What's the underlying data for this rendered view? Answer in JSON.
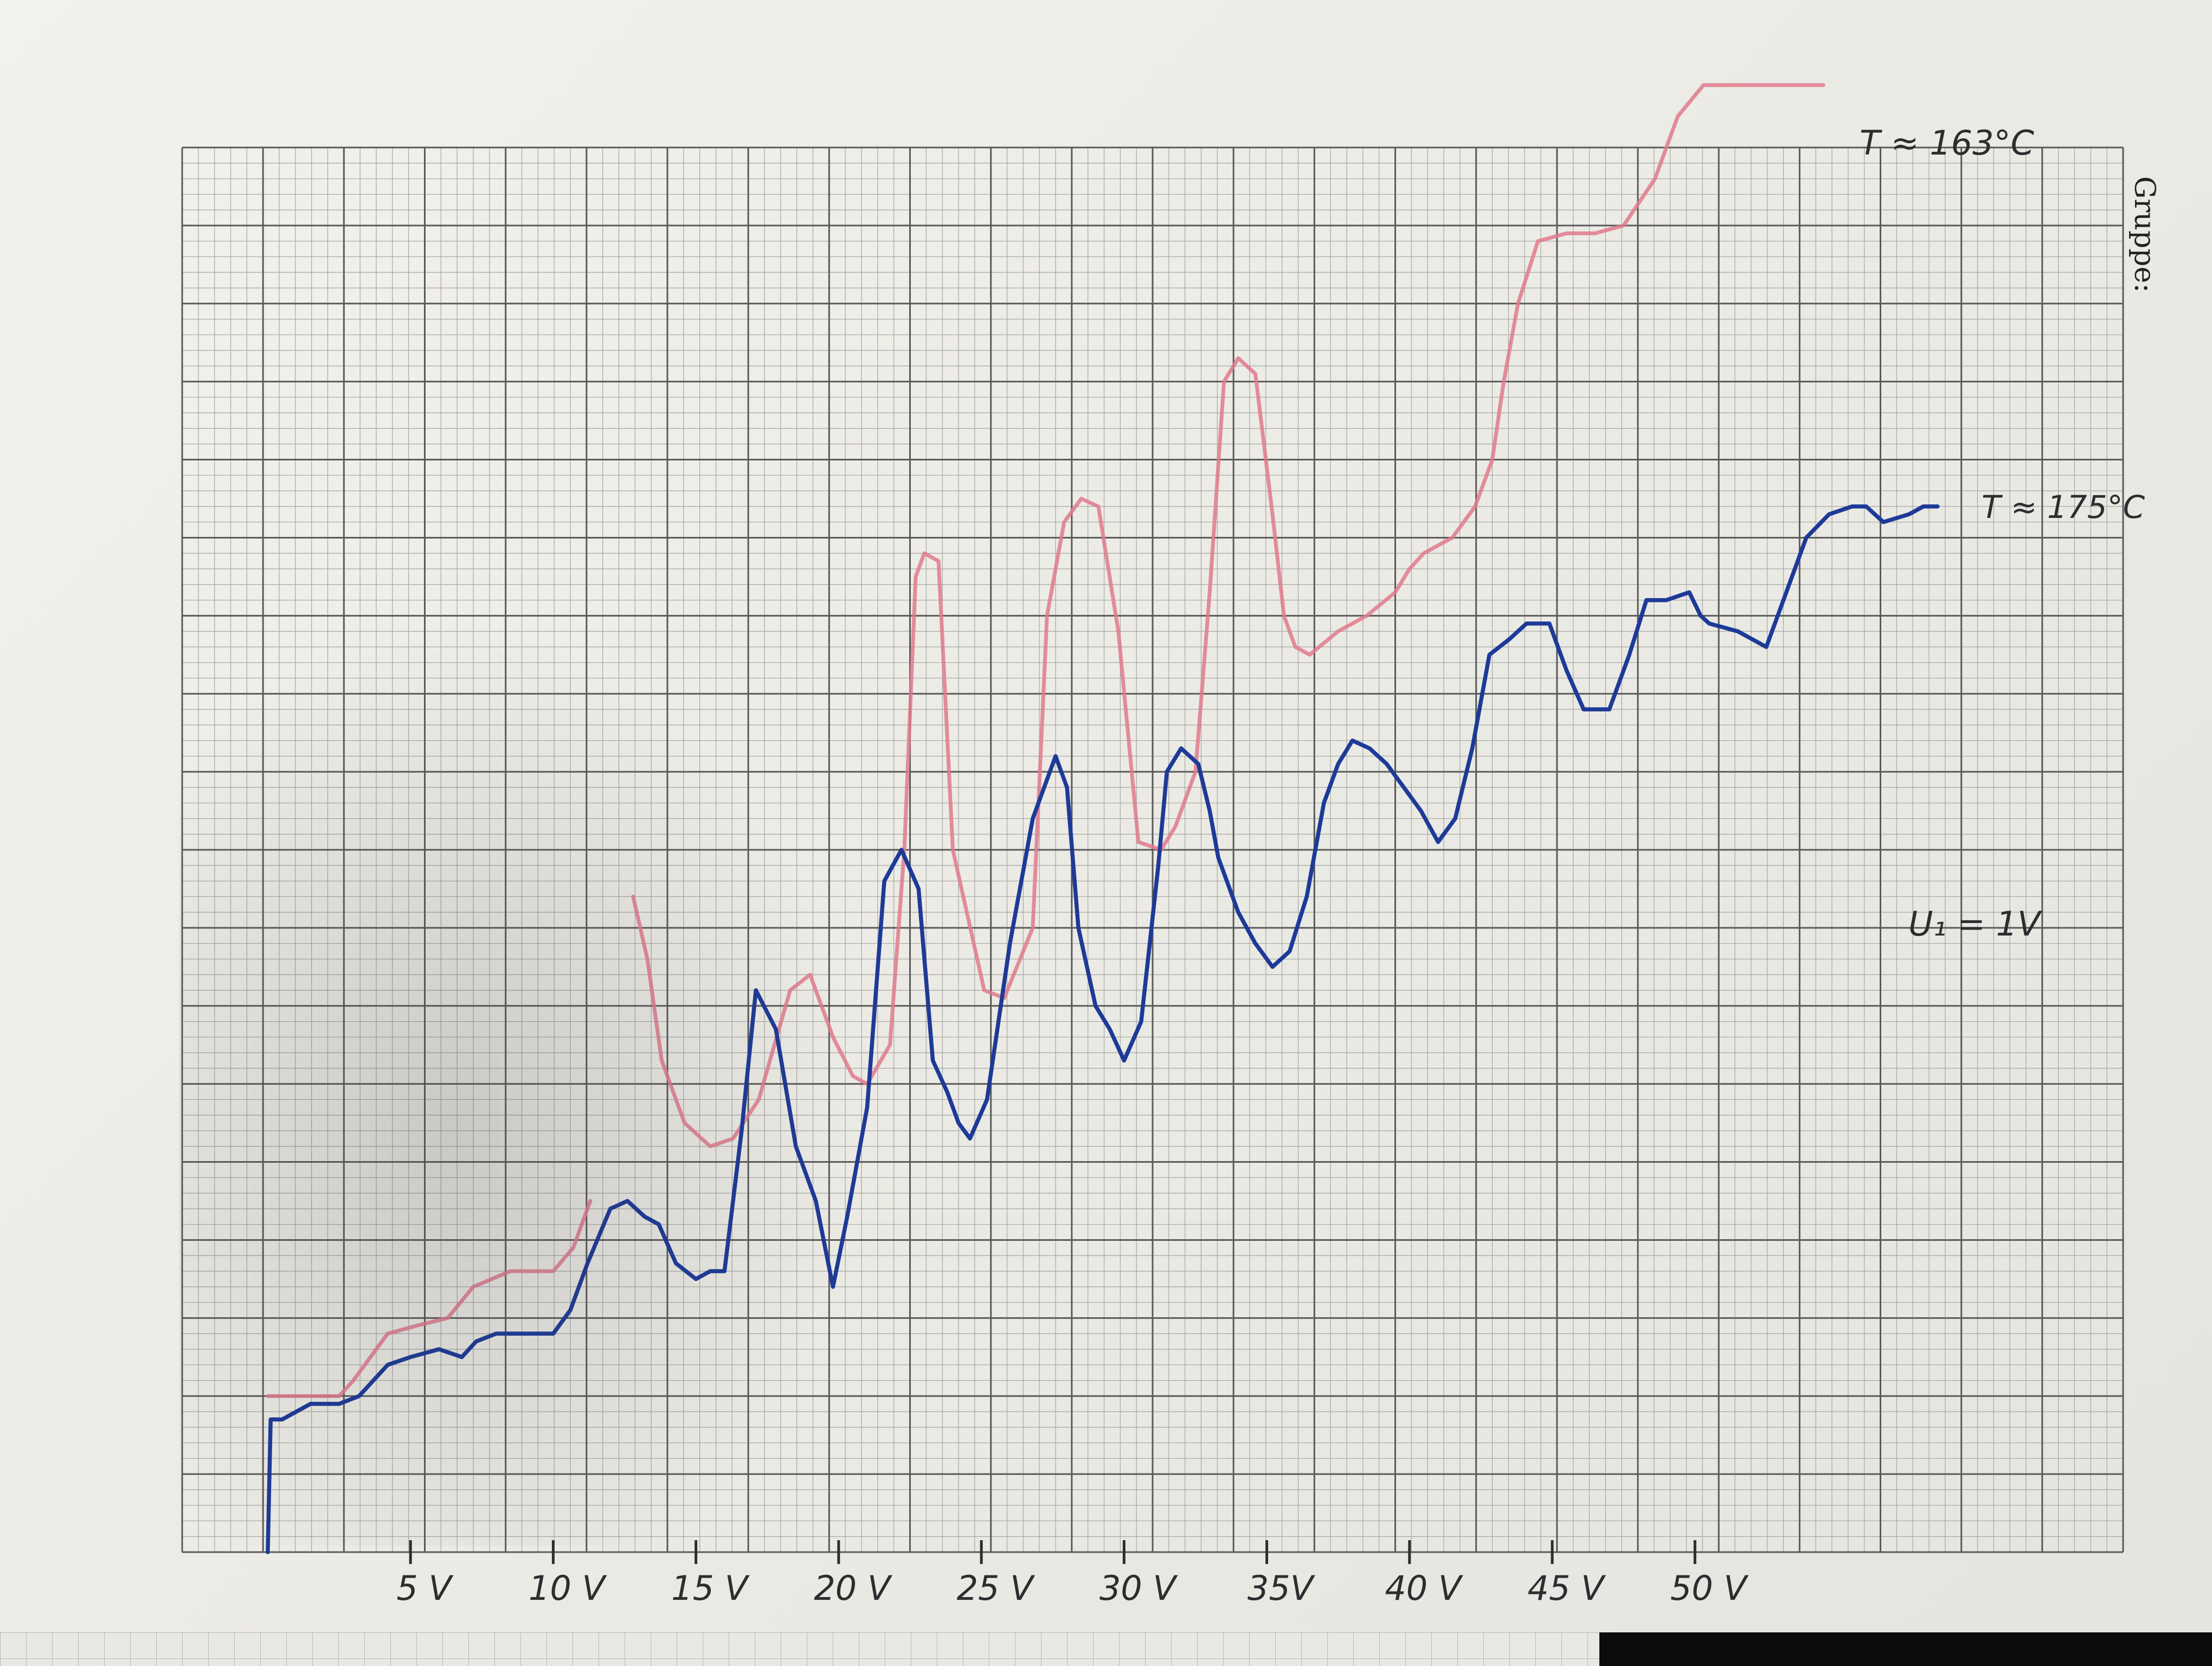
{
  "page": {
    "sheet_header": "Gruppe:"
  },
  "colors": {
    "grid_major": "#5a5a5a",
    "grid_minor": "#a5a5a5",
    "red_curve": "#e07a8c",
    "blue_curve": "#1d3a98",
    "ink": "#2d2d30"
  },
  "chart_data": {
    "type": "line",
    "title": "",
    "xlabel": "",
    "ylabel": "",
    "xlim": [
      -3,
      65
    ],
    "ylim": [
      0,
      18
    ],
    "x_tick_values": [
      5,
      10,
      15,
      20,
      25,
      30,
      35,
      40,
      45,
      50
    ],
    "x_tick_labels": [
      "5 V",
      "10 V",
      "15 V",
      "20 V",
      "25 V",
      "30 V",
      "35V",
      "40 V",
      "45 V",
      "50 V"
    ],
    "grid": true,
    "annotations": {
      "red_label": "T ≈ 163°C",
      "blue_label": "T ≈ 175°C",
      "voltage_note": "U₁ = 1V"
    },
    "series": [
      {
        "label_ref": "T ≈ 163°C",
        "color": "#e07a8c",
        "segments": [
          {
            "x": [
              0,
              2.5,
              3.0,
              4.2,
              5.2,
              6.3,
              7.2,
              8.5,
              10.0,
              10.7,
              11.3
            ],
            "y": [
              2.0,
              2.0,
              2.2,
              2.8,
              2.9,
              3.0,
              3.4,
              3.6,
              3.6,
              3.9,
              4.5
            ]
          },
          {
            "x": [
              12.8,
              13.3,
              13.8,
              14.6,
              15.5,
              16.3,
              17.2,
              18.3,
              19.0,
              19.8,
              20.5,
              21.0,
              21.8,
              22.3,
              22.7,
              23.0,
              23.5,
              24.0,
              25.1,
              25.8,
              26.8,
              27.3,
              27.9,
              28.5,
              29.1,
              29.8,
              30.5,
              31.3,
              31.8,
              32.5,
              33.0,
              33.5,
              34.0,
              34.6,
              35.2,
              35.6,
              36.0,
              36.5,
              37.5,
              38.5,
              39.5,
              40.0,
              40.5,
              41.5,
              42.3,
              42.9,
              43.3,
              43.8,
              44.5,
              45.5,
              46.5,
              47.5,
              48.6,
              49.4,
              50.3,
              50.9,
              52.0,
              53.5,
              54.5
            ],
            "y": [
              8.4,
              7.6,
              6.3,
              5.5,
              5.2,
              5.3,
              5.8,
              7.2,
              7.4,
              6.6,
              6.1,
              6.0,
              6.5,
              9.0,
              12.5,
              12.8,
              12.7,
              9.0,
              7.2,
              7.1,
              8.0,
              12.0,
              13.2,
              13.5,
              13.4,
              11.8,
              9.1,
              9.0,
              9.3,
              10.0,
              12.3,
              15.0,
              15.3,
              15.1,
              13.3,
              12.0,
              11.6,
              11.5,
              11.8,
              12.0,
              12.3,
              12.6,
              12.8,
              13.0,
              13.4,
              14.0,
              15.0,
              16.0,
              16.8,
              16.9,
              16.9,
              17.0,
              17.6,
              18.4,
              18.8,
              18.8,
              18.8,
              18.8,
              18.8
            ]
          }
        ]
      },
      {
        "label_ref": "T ≈ 175°C",
        "color": "#1d3a98",
        "segments": [
          {
            "x": [
              0,
              0.1,
              0.5,
              1.5,
              2.5,
              3.2,
              4.2,
              5.0,
              6.0,
              6.8,
              7.3,
              8.0,
              9.0,
              10.0,
              10.6,
              11.2,
              12.0,
              12.6,
              13.2,
              13.7,
              14.3,
              15.0,
              15.5,
              16.0,
              16.6,
              17.1,
              17.8,
              18.5,
              19.2,
              19.8,
              20.3,
              21.0,
              21.6,
              22.2,
              22.8,
              23.3,
              23.8,
              24.2,
              24.6,
              25.2,
              26.0,
              26.8,
              27.6,
              28.0,
              28.4,
              29.0,
              29.5,
              30.0,
              30.6,
              31.2,
              31.5,
              32.0,
              32.6,
              33.0,
              33.3,
              34.0,
              34.6,
              35.2,
              35.8,
              36.4,
              37.0,
              37.5,
              38.0,
              38.6,
              39.2,
              39.8,
              40.4,
              41.0,
              41.6,
              42.2,
              42.8,
              43.5,
              44.1,
              44.9,
              45.5,
              46.1,
              47.0,
              47.7,
              48.3,
              49.0,
              49.8,
              50.2,
              50.5,
              51.5,
              52.5,
              53.2,
              53.9,
              54.7,
              55.5,
              56.0,
              56.6,
              57.5,
              58.0,
              58.5
            ],
            "y": [
              0,
              1.7,
              1.7,
              1.9,
              1.9,
              2.0,
              2.4,
              2.5,
              2.6,
              2.5,
              2.7,
              2.8,
              2.8,
              2.8,
              3.1,
              3.7,
              4.4,
              4.5,
              4.3,
              4.2,
              3.7,
              3.5,
              3.6,
              3.6,
              5.4,
              7.2,
              6.7,
              5.2,
              4.5,
              3.4,
              4.3,
              5.7,
              8.6,
              9.0,
              8.5,
              6.3,
              5.9,
              5.5,
              5.3,
              5.8,
              7.8,
              9.4,
              10.2,
              9.8,
              8.0,
              7.0,
              6.7,
              6.3,
              6.8,
              8.8,
              10.0,
              10.3,
              10.1,
              9.5,
              8.9,
              8.2,
              7.8,
              7.5,
              7.7,
              8.4,
              9.6,
              10.1,
              10.4,
              10.3,
              10.1,
              9.8,
              9.5,
              9.1,
              9.4,
              10.3,
              11.5,
              11.7,
              11.9,
              11.9,
              11.3,
              10.8,
              10.8,
              11.5,
              12.2,
              12.2,
              12.3,
              12.0,
              11.9,
              11.8,
              11.6,
              12.3,
              13.0,
              13.3,
              13.4,
              13.4,
              13.2,
              13.3,
              13.4,
              13.4
            ]
          }
        ]
      }
    ]
  }
}
